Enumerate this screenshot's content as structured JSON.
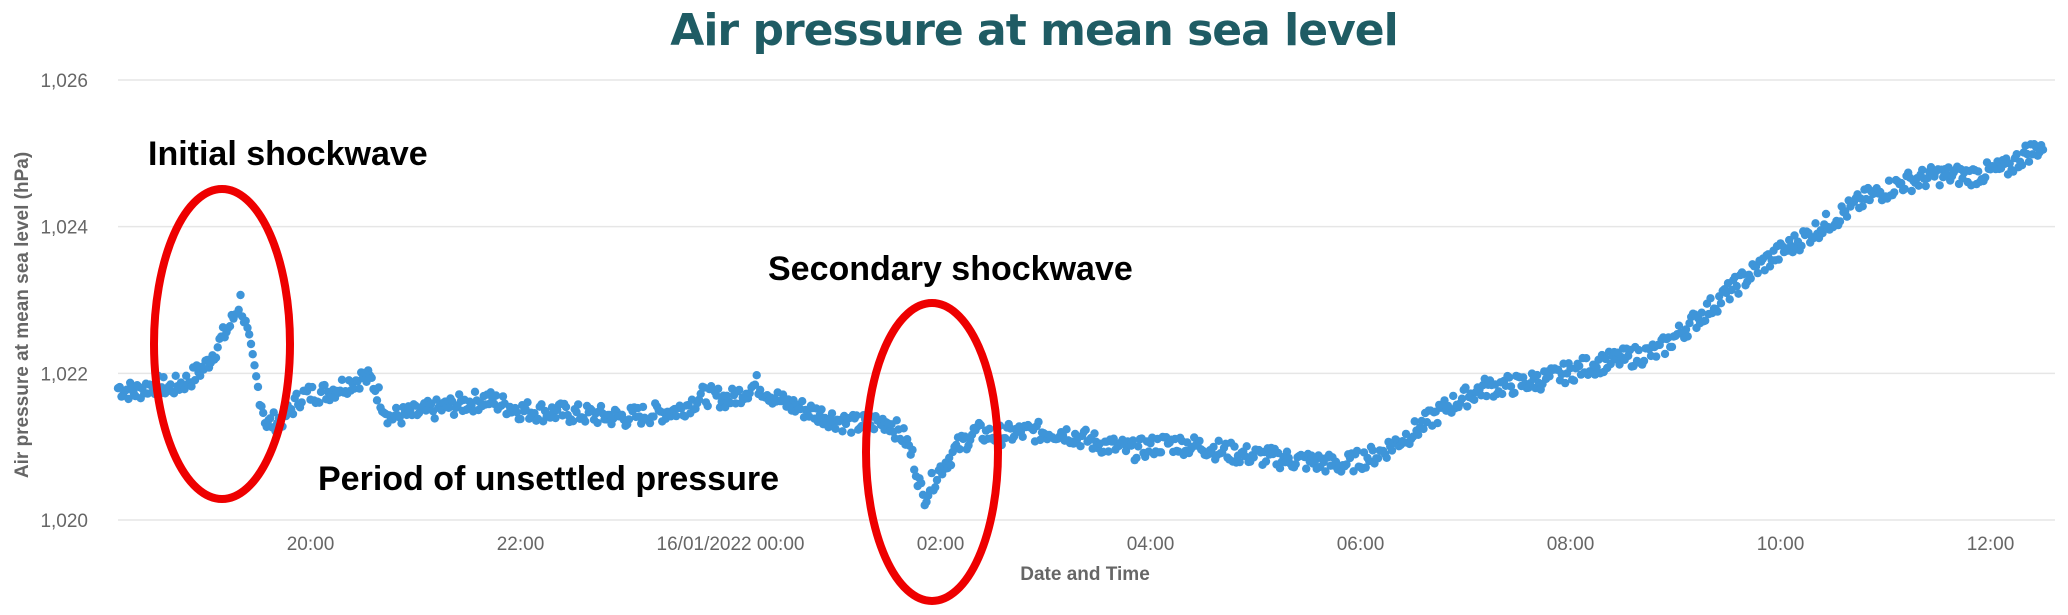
{
  "chart_data": {
    "type": "scatter",
    "title": "Air pressure at mean sea level",
    "xlabel": "Date and Time",
    "ylabel": "Air pressure at mean sea level (hPa)",
    "x_ticks": [
      "20:00",
      "22:00",
      "16/01/2022 00:00",
      "02:00",
      "04:00",
      "06:00",
      "08:00",
      "10:00",
      "12:00"
    ],
    "x_range": [
      "2022-01-15 18:10",
      "2022-01-16 12:30"
    ],
    "y_ticks": [
      "1,020",
      "1,022",
      "1,024",
      "1,026"
    ],
    "ylim": [
      1020,
      1026
    ],
    "grid": true,
    "color": "#3e95d9",
    "annotation_color": "#ee0000",
    "annotations": [
      {
        "text": "Initial shockwave"
      },
      {
        "text": "Secondary shockwave"
      },
      {
        "text": "Period of unsettled pressure"
      }
    ],
    "series": [
      {
        "values": [
          [
            "2022-01-15 18:10",
            1021.8
          ],
          [
            "2022-01-15 18:20",
            1021.75
          ],
          [
            "2022-01-15 18:30",
            1021.85
          ],
          [
            "2022-01-15 18:40",
            1021.8
          ],
          [
            "2022-01-15 18:50",
            1021.9
          ],
          [
            "2022-01-15 19:00",
            1022.1
          ],
          [
            "2022-01-15 19:05",
            1022.3
          ],
          [
            "2022-01-15 19:10",
            1022.5
          ],
          [
            "2022-01-15 19:15",
            1022.7
          ],
          [
            "2022-01-15 19:20",
            1023.0
          ],
          [
            "2022-01-15 19:25",
            1022.4
          ],
          [
            "2022-01-15 19:30",
            1021.8
          ],
          [
            "2022-01-15 19:35",
            1021.3
          ],
          [
            "2022-01-15 19:45",
            1021.4
          ],
          [
            "2022-01-15 19:55",
            1021.7
          ],
          [
            "2022-01-15 20:10",
            1021.75
          ],
          [
            "2022-01-15 20:20",
            1021.85
          ],
          [
            "2022-01-15 20:30",
            1021.95
          ],
          [
            "2022-01-15 20:35",
            1021.9
          ],
          [
            "2022-01-15 20:45",
            1021.4
          ],
          [
            "2022-01-15 21:00",
            1021.45
          ],
          [
            "2022-01-15 21:20",
            1021.55
          ],
          [
            "2022-01-15 21:40",
            1021.65
          ],
          [
            "2022-01-15 22:00",
            1021.5
          ],
          [
            "2022-01-15 22:30",
            1021.45
          ],
          [
            "2022-01-15 23:00",
            1021.4
          ],
          [
            "2022-01-15 23:30",
            1021.5
          ],
          [
            "2022-01-15 23:45",
            1021.7
          ],
          [
            "2022-01-16 00:00",
            1021.65
          ],
          [
            "2022-01-16 00:15",
            1021.85
          ],
          [
            "2022-01-16 00:30",
            1021.6
          ],
          [
            "2022-01-16 00:50",
            1021.45
          ],
          [
            "2022-01-16 01:10",
            1021.3
          ],
          [
            "2022-01-16 01:30",
            1021.35
          ],
          [
            "2022-01-16 01:40",
            1021.1
          ],
          [
            "2022-01-16 01:45",
            1020.8
          ],
          [
            "2022-01-16 01:50",
            1020.3
          ],
          [
            "2022-01-16 02:00",
            1020.7
          ],
          [
            "2022-01-16 02:10",
            1021.0
          ],
          [
            "2022-01-16 02:20",
            1021.2
          ],
          [
            "2022-01-16 02:30",
            1021.15
          ],
          [
            "2022-01-16 02:50",
            1021.2
          ],
          [
            "2022-01-16 03:10",
            1021.2
          ],
          [
            "2022-01-16 03:30",
            1021.05
          ],
          [
            "2022-01-16 03:50",
            1020.95
          ],
          [
            "2022-01-16 04:10",
            1021.05
          ],
          [
            "2022-01-16 04:30",
            1021.0
          ],
          [
            "2022-01-16 04:50",
            1020.9
          ],
          [
            "2022-01-16 05:10",
            1020.85
          ],
          [
            "2022-01-16 05:30",
            1020.8
          ],
          [
            "2022-01-16 05:50",
            1020.75
          ],
          [
            "2022-01-16 06:10",
            1020.9
          ],
          [
            "2022-01-16 06:30",
            1021.2
          ],
          [
            "2022-01-16 06:50",
            1021.55
          ],
          [
            "2022-01-16 07:10",
            1021.8
          ],
          [
            "2022-01-16 07:30",
            1021.85
          ],
          [
            "2022-01-16 07:50",
            1021.95
          ],
          [
            "2022-01-16 08:10",
            1022.1
          ],
          [
            "2022-01-16 08:30",
            1022.2
          ],
          [
            "2022-01-16 08:50",
            1022.3
          ],
          [
            "2022-01-16 09:10",
            1022.7
          ],
          [
            "2022-01-16 09:30",
            1023.1
          ],
          [
            "2022-01-16 09:50",
            1023.5
          ],
          [
            "2022-01-16 10:10",
            1023.8
          ],
          [
            "2022-01-16 10:30",
            1024.1
          ],
          [
            "2022-01-16 10:50",
            1024.4
          ],
          [
            "2022-01-16 11:10",
            1024.6
          ],
          [
            "2022-01-16 11:30",
            1024.7
          ],
          [
            "2022-01-16 11:50",
            1024.7
          ],
          [
            "2022-01-16 12:10",
            1024.8
          ],
          [
            "2022-01-16 12:20",
            1025.0
          ],
          [
            "2022-01-16 12:30",
            1025.1
          ]
        ]
      }
    ]
  }
}
